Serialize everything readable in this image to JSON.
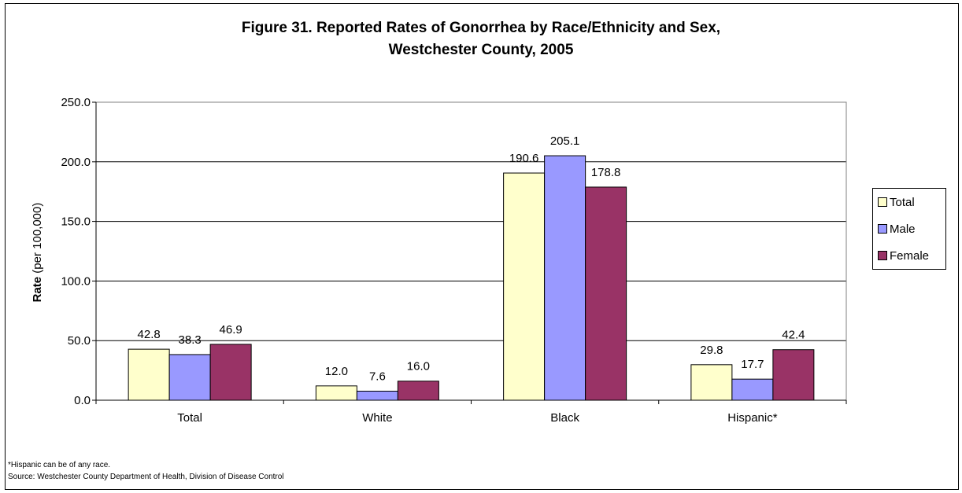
{
  "chart_data": {
    "type": "bar",
    "title_line1": "Figure 31. Reported Rates of Gonorrhea by Race/Ethnicity and Sex,",
    "title_line2": "Westchester County, 2005",
    "ylabel_bold": "Rate",
    "ylabel_rest": " (per 100,000)",
    "xlabel": "",
    "ylim": [
      0,
      250
    ],
    "yticks": [
      "0.0",
      "50.0",
      "100.0",
      "150.0",
      "200.0",
      "250.0"
    ],
    "ytick_values": [
      0,
      50,
      100,
      150,
      200,
      250
    ],
    "grid": true,
    "legend_position": "right",
    "categories": [
      "Total",
      "White",
      "Black",
      "Hispanic*"
    ],
    "series": [
      {
        "name": "Total",
        "color": "#ffffcc",
        "values": [
          42.8,
          12.0,
          190.6,
          29.8
        ],
        "labels": [
          "42.8",
          "12.0",
          "190.6",
          "29.8"
        ]
      },
      {
        "name": "Male",
        "color": "#9999ff",
        "values": [
          38.3,
          7.6,
          205.1,
          17.7
        ],
        "labels": [
          "38.3",
          "7.6",
          "205.1",
          "17.7"
        ]
      },
      {
        "name": "Female",
        "color": "#993366",
        "values": [
          46.9,
          16.0,
          178.8,
          42.4
        ],
        "labels": [
          "46.9",
          "16.0",
          "178.8",
          "42.4"
        ]
      }
    ]
  },
  "footnotes": {
    "hispanic_note": "*Hispanic can be of any race.",
    "source": "Source: Westchester County Department of Health, Division of Disease Control"
  },
  "colors": {
    "plot_background": "#ffffff",
    "gridline": "#000000"
  }
}
